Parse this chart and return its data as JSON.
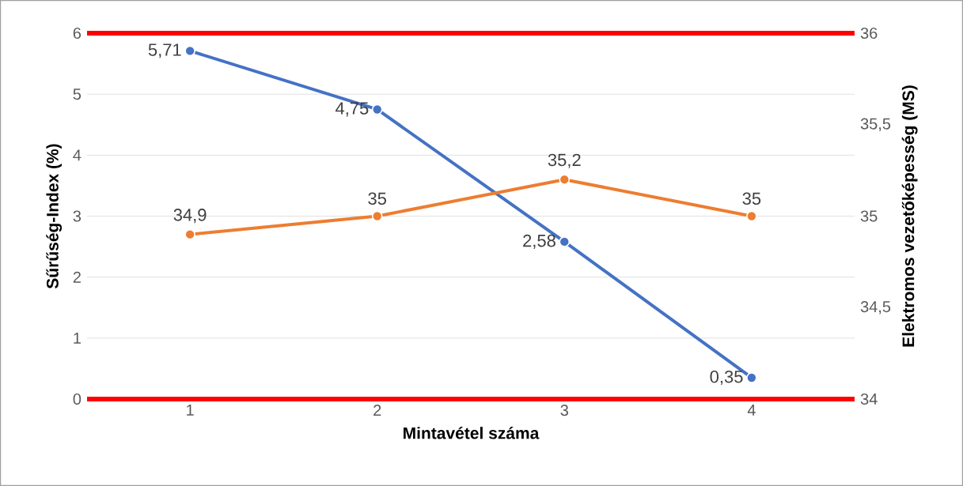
{
  "chart_data": {
    "type": "line",
    "xlabel": "Mintavétel száma",
    "ylabel": "Sűrűség-Index (%)",
    "y2label": "Elektromos vezetőképesség (MS)",
    "categories": [
      "1",
      "2",
      "3",
      "4"
    ],
    "series": [
      {
        "color": "#4472c4",
        "values": [
          5.71,
          4.75,
          2.58,
          0.35
        ],
        "value_labels": [
          "5,71",
          "4,75",
          "2,58",
          "0,35"
        ]
      },
      {
        "color": "#ed7d31",
        "values": [
          34.9,
          35,
          35.2,
          35
        ],
        "value_labels": [
          "34,9",
          "35",
          "35,2",
          "35"
        ],
        "axis": "y2"
      }
    ],
    "ylim": [
      0,
      6
    ],
    "yticks": [
      0,
      1,
      2,
      3,
      4,
      5,
      6
    ],
    "y2lim": [
      34,
      36
    ],
    "y2ticks": [
      34,
      {
        "value": 34.5,
        "label": "34,5"
      },
      35,
      {
        "value": 35.5,
        "label": "35,5"
      },
      36
    ],
    "ref_lines": [
      {
        "axis": "y",
        "value": 6,
        "color": "#ff0000"
      }
    ],
    "grid": "y",
    "marker": "circle",
    "line_style": "solid"
  }
}
